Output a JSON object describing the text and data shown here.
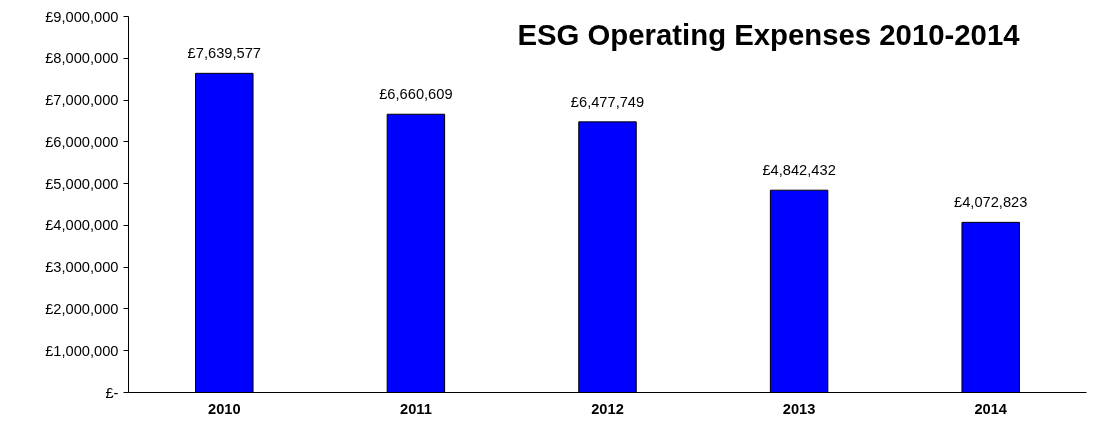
{
  "chart_data": {
    "type": "bar",
    "title": "ESG Operating Expenses 2010-2014",
    "categories": [
      "2010",
      "2011",
      "2012",
      "2013",
      "2014"
    ],
    "values": [
      7639577,
      6660609,
      6477749,
      4842432,
      4072823
    ],
    "value_labels": [
      "£7,639,577",
      "£6,660,609",
      "£6,477,749",
      "£4,842,432",
      "£4,072,823"
    ],
    "color": "#0000ff",
    "ylim": [
      0,
      9000000
    ],
    "yticks": [
      {
        "value": 0,
        "label": "£-"
      },
      {
        "value": 1000000,
        "label": "£1,000,000"
      },
      {
        "value": 2000000,
        "label": "£2,000,000"
      },
      {
        "value": 3000000,
        "label": "£3,000,000"
      },
      {
        "value": 4000000,
        "label": "£4,000,000"
      },
      {
        "value": 5000000,
        "label": "£5,000,000"
      },
      {
        "value": 6000000,
        "label": "£6,000,000"
      },
      {
        "value": 7000000,
        "label": "£7,000,000"
      },
      {
        "value": 8000000,
        "label": "£8,000,000"
      },
      {
        "value": 9000000,
        "label": "£9,000,000"
      }
    ],
    "grid": false
  }
}
